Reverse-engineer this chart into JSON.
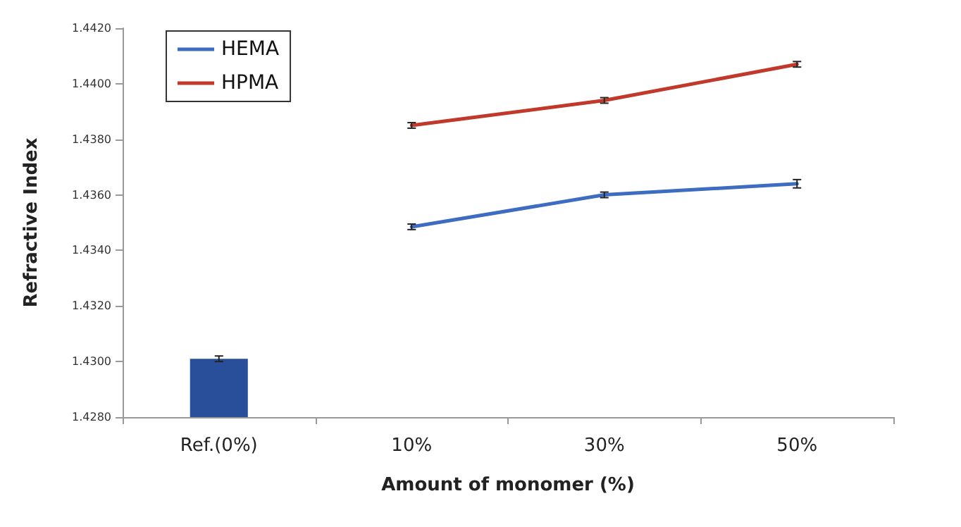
{
  "chart_data": {
    "type": "line",
    "xlabel": "Amount of monomer (%)",
    "ylabel": "Refractive Index",
    "categories": [
      "Ref.(0%)",
      "10%",
      "30%",
      "50%"
    ],
    "series": [
      {
        "type": "bar",
        "color": "#2a4f9a",
        "values": [
          1.4301,
          null,
          null,
          null
        ],
        "errors": [
          0.0001,
          null,
          null,
          null
        ]
      },
      {
        "name": "HEMA",
        "color": "#3d6cc0",
        "values": [
          null,
          1.43485,
          1.436,
          1.4364
        ],
        "errors": [
          null,
          0.0001,
          0.0001,
          0.00015
        ]
      },
      {
        "name": "HPMA",
        "color": "#c0392b",
        "values": [
          null,
          1.4385,
          1.4394,
          1.4407
        ],
        "errors": [
          null,
          0.0001,
          0.0001,
          0.0001
        ]
      }
    ],
    "ylim": [
      1.428,
      1.442
    ],
    "yticks": [
      {
        "value": 1.428,
        "label": "1.4280"
      },
      {
        "value": 1.43,
        "label": "1.4300"
      },
      {
        "value": 1.432,
        "label": "1.4320"
      },
      {
        "value": 1.434,
        "label": "1.4340"
      },
      {
        "value": 1.436,
        "label": "1.4360"
      },
      {
        "value": 1.438,
        "label": "1.4380"
      },
      {
        "value": 1.44,
        "label": "1.4400"
      },
      {
        "value": 1.442,
        "label": "1.4420"
      }
    ],
    "legend": "top left",
    "grid": false,
    "marker": "none",
    "line_style": "solid"
  }
}
